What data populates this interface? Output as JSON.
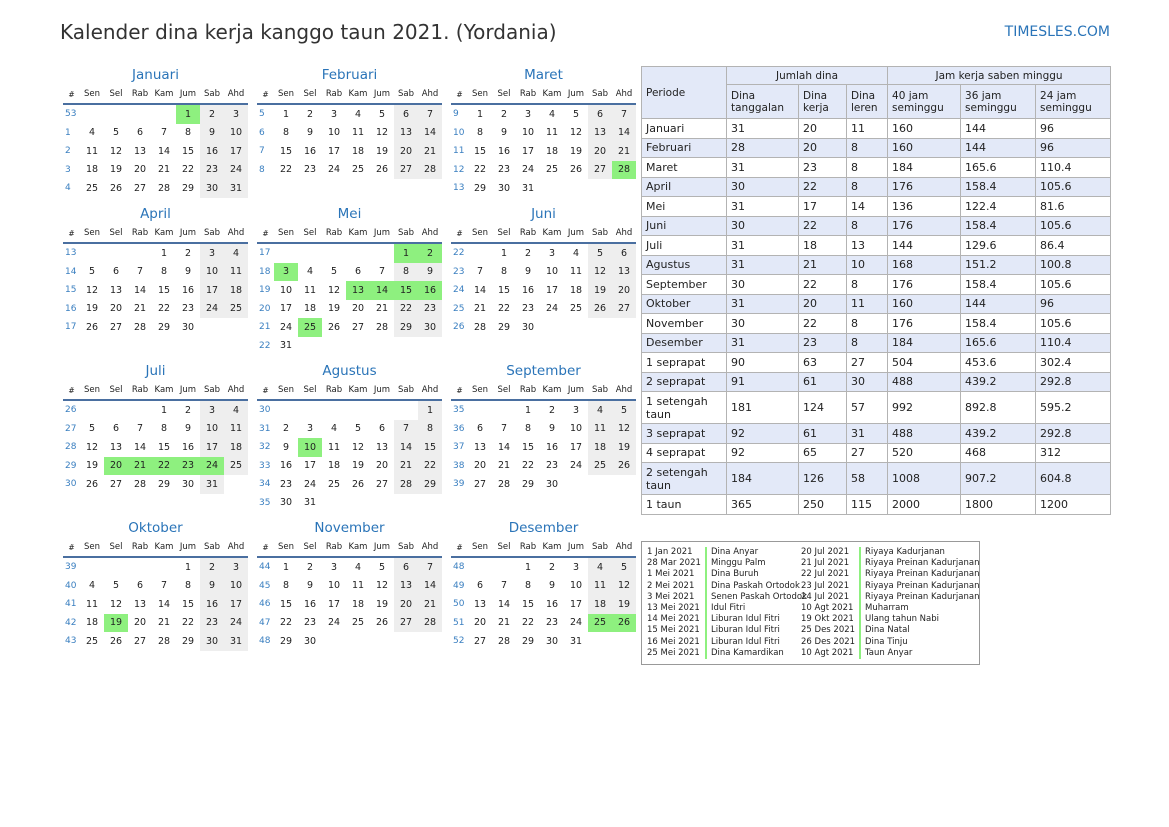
{
  "title": "Kalender dina kerja kanggo taun 2021. (Yordania)",
  "brand": "TIMESLES.COM",
  "colors": {
    "accent": "#2a74b8",
    "holiday": "#8ef07f",
    "weekend": "#eeeeee",
    "header_bg": "#e3e9f8"
  },
  "day_headers": [
    "#",
    "Sen",
    "Sel",
    "Rab",
    "Kam",
    "Jum",
    "Sab",
    "Ahd"
  ],
  "months": [
    {
      "name": "Januari",
      "start": 4,
      "days": 31,
      "week_start": 53,
      "holidays": [
        1
      ]
    },
    {
      "name": "Februari",
      "start": 0,
      "days": 28,
      "week_start": 5,
      "holidays": []
    },
    {
      "name": "Maret",
      "start": 0,
      "days": 31,
      "week_start": 9,
      "holidays": [
        28
      ]
    },
    {
      "name": "April",
      "start": 3,
      "days": 30,
      "week_start": 13,
      "holidays": []
    },
    {
      "name": "Mei",
      "start": 5,
      "days": 31,
      "week_start": 17,
      "holidays": [
        1,
        2,
        3,
        13,
        14,
        15,
        16,
        25
      ]
    },
    {
      "name": "Juni",
      "start": 1,
      "days": 30,
      "week_start": 22,
      "holidays": []
    },
    {
      "name": "Juli",
      "start": 3,
      "days": 31,
      "week_start": 26,
      "holidays": [
        20,
        21,
        22,
        23,
        24
      ]
    },
    {
      "name": "Agustus",
      "start": 6,
      "days": 31,
      "week_start": 30,
      "holidays": [
        10
      ]
    },
    {
      "name": "September",
      "start": 2,
      "days": 30,
      "week_start": 35,
      "holidays": []
    },
    {
      "name": "Oktober",
      "start": 4,
      "days": 31,
      "week_start": 39,
      "holidays": [
        19
      ]
    },
    {
      "name": "November",
      "start": 0,
      "days": 30,
      "week_start": 44,
      "holidays": []
    },
    {
      "name": "Desember",
      "start": 2,
      "days": 31,
      "week_start": 48,
      "holidays": [
        25,
        26
      ]
    }
  ],
  "summary": {
    "periode": "Periode",
    "jumlah_dina": "Jumlah dina",
    "jam_kerja": "Jam kerja saben minggu",
    "sub": [
      "Dina tanggalan",
      "Dina kerja",
      "Dina leren",
      "40 jam seminggu",
      "36 jam seminggu",
      "24 jam seminggu"
    ],
    "rows": [
      [
        "Januari",
        "31",
        "20",
        "11",
        "160",
        "144",
        "96"
      ],
      [
        "Februari",
        "28",
        "20",
        "8",
        "160",
        "144",
        "96"
      ],
      [
        "Maret",
        "31",
        "23",
        "8",
        "184",
        "165.6",
        "110.4"
      ],
      [
        "April",
        "30",
        "22",
        "8",
        "176",
        "158.4",
        "105.6"
      ],
      [
        "Mei",
        "31",
        "17",
        "14",
        "136",
        "122.4",
        "81.6"
      ],
      [
        "Juni",
        "30",
        "22",
        "8",
        "176",
        "158.4",
        "105.6"
      ],
      [
        "Juli",
        "31",
        "18",
        "13",
        "144",
        "129.6",
        "86.4"
      ],
      [
        "Agustus",
        "31",
        "21",
        "10",
        "168",
        "151.2",
        "100.8"
      ],
      [
        "September",
        "30",
        "22",
        "8",
        "176",
        "158.4",
        "105.6"
      ],
      [
        "Oktober",
        "31",
        "20",
        "11",
        "160",
        "144",
        "96"
      ],
      [
        "November",
        "30",
        "22",
        "8",
        "176",
        "158.4",
        "105.6"
      ],
      [
        "Desember",
        "31",
        "23",
        "8",
        "184",
        "165.6",
        "110.4"
      ],
      [
        "1 seprapat",
        "90",
        "63",
        "27",
        "504",
        "453.6",
        "302.4"
      ],
      [
        "2 seprapat",
        "91",
        "61",
        "30",
        "488",
        "439.2",
        "292.8"
      ],
      [
        "1 setengah taun",
        "181",
        "124",
        "57",
        "992",
        "892.8",
        "595.2"
      ],
      [
        "3 seprapat",
        "92",
        "61",
        "31",
        "488",
        "439.2",
        "292.8"
      ],
      [
        "4 seprapat",
        "92",
        "65",
        "27",
        "520",
        "468",
        "312"
      ],
      [
        "2 setengah taun",
        "184",
        "126",
        "58",
        "1008",
        "907.2",
        "604.8"
      ],
      [
        "1 taun",
        "365",
        "250",
        "115",
        "2000",
        "1800",
        "1200"
      ]
    ]
  },
  "holidays_list": [
    [
      [
        "1 Jan 2021",
        "Dina Anyar"
      ],
      [
        "28 Mar 2021",
        "Minggu Palm"
      ],
      [
        "1 Mei 2021",
        "Dina Buruh"
      ],
      [
        "2 Mei 2021",
        "Dina Paskah Ortodok"
      ],
      [
        "3 Mei 2021",
        "Senen Paskah Ortodok"
      ],
      [
        "13 Mei 2021",
        "Idul Fitri"
      ],
      [
        "14 Mei 2021",
        "Liburan Idul Fitri"
      ],
      [
        "15 Mei 2021",
        "Liburan Idul Fitri"
      ],
      [
        "16 Mei 2021",
        "Liburan Idul Fitri"
      ],
      [
        "25 Mei 2021",
        "Dina Kamardikan"
      ]
    ],
    [
      [
        "20 Jul 2021",
        "Riyaya Kadurjanan"
      ],
      [
        "21 Jul 2021",
        "Riyaya Preinan Kadurjanan"
      ],
      [
        "22 Jul 2021",
        "Riyaya Preinan Kadurjanan"
      ],
      [
        "23 Jul 2021",
        "Riyaya Preinan Kadurjanan"
      ],
      [
        "24 Jul 2021",
        "Riyaya Preinan Kadurjanan"
      ],
      [
        "10 Agt 2021",
        "Muharram"
      ],
      [
        "19 Okt 2021",
        "Ulang tahun Nabi"
      ],
      [
        "25 Des 2021",
        "Dina Natal"
      ],
      [
        "26 Des 2021",
        "Dina Tinju"
      ],
      [
        "10 Agt 2021",
        "Taun Anyar"
      ]
    ]
  ]
}
